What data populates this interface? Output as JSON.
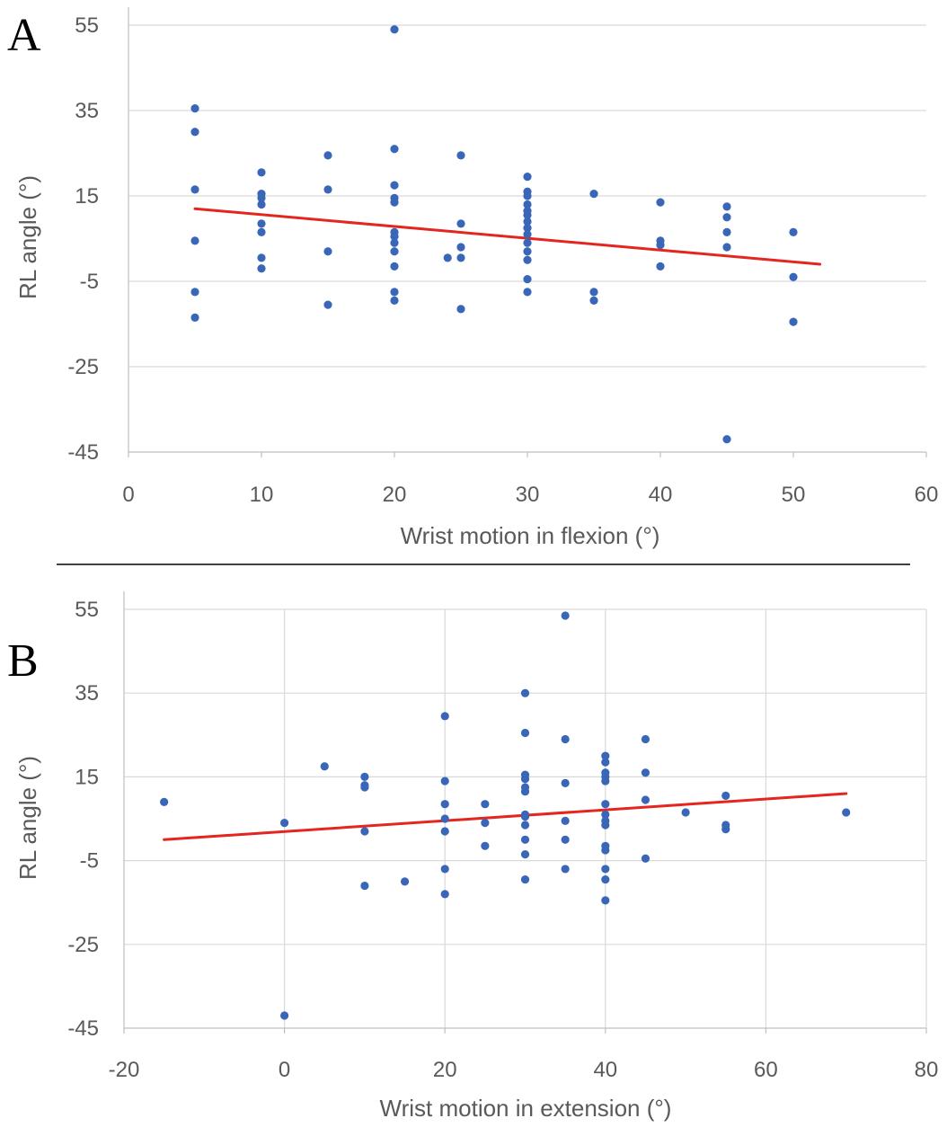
{
  "colors": {
    "points": "#3a66b8",
    "trendline": "#e3261f",
    "grid": "#d9d9d9",
    "text": "#595959",
    "divider": "#000000"
  },
  "chart_data": [
    {
      "type": "scatter",
      "panel_label": "A",
      "xlabel": "Wrist motion in flexion (°)",
      "ylabel": "RL angle (°)",
      "xlim": [
        0,
        60
      ],
      "ylim": [
        -45,
        55
      ],
      "xticks": [
        "0",
        "10",
        "20",
        "30",
        "40",
        "50",
        "60"
      ],
      "yticks": [
        "55",
        "35",
        "15",
        "-5",
        "-25",
        "-45"
      ],
      "x_ticks": [
        0,
        10,
        20,
        30,
        40,
        50,
        60
      ],
      "y_ticks": [
        55,
        35,
        15,
        -5,
        -25,
        -45
      ],
      "grid": "horizontal",
      "trendline": {
        "x": [
          5,
          52
        ],
        "y": [
          12,
          -1
        ]
      },
      "points": [
        [
          5,
          35.5
        ],
        [
          5,
          30
        ],
        [
          5,
          16.5
        ],
        [
          5,
          4.5
        ],
        [
          5,
          -7.5
        ],
        [
          5,
          -13.5
        ],
        [
          10,
          20.5
        ],
        [
          10,
          15.5
        ],
        [
          10,
          14.5
        ],
        [
          10,
          13
        ],
        [
          10,
          8.5
        ],
        [
          10,
          6.5
        ],
        [
          10,
          0.5
        ],
        [
          10,
          -2
        ],
        [
          15,
          24.5
        ],
        [
          15,
          16.5
        ],
        [
          15,
          2
        ],
        [
          15,
          -10.5
        ],
        [
          20,
          54
        ],
        [
          20,
          26
        ],
        [
          20,
          17.5
        ],
        [
          20,
          14.5
        ],
        [
          20,
          13.5
        ],
        [
          20,
          6.5
        ],
        [
          20,
          5.5
        ],
        [
          20,
          4
        ],
        [
          20,
          2
        ],
        [
          20,
          -1.5
        ],
        [
          20,
          -7.5
        ],
        [
          20,
          -9.5
        ],
        [
          24,
          0.5
        ],
        [
          25,
          24.5
        ],
        [
          25,
          8.5
        ],
        [
          25,
          3
        ],
        [
          25,
          0.5
        ],
        [
          25,
          -11.5
        ],
        [
          30,
          19.5
        ],
        [
          30,
          16
        ],
        [
          30,
          15
        ],
        [
          30,
          13
        ],
        [
          30,
          11.5
        ],
        [
          30,
          10.5
        ],
        [
          30,
          9
        ],
        [
          30,
          7.5
        ],
        [
          30,
          6
        ],
        [
          30,
          4
        ],
        [
          30,
          2
        ],
        [
          30,
          0
        ],
        [
          30,
          -4.5
        ],
        [
          30,
          -7.5
        ],
        [
          35,
          15.5
        ],
        [
          35,
          -7.5
        ],
        [
          35,
          -9.5
        ],
        [
          40,
          13.5
        ],
        [
          40,
          4.5
        ],
        [
          40,
          3.5
        ],
        [
          40,
          -1.5
        ],
        [
          45,
          12.5
        ],
        [
          45,
          10
        ],
        [
          45,
          6.5
        ],
        [
          45,
          3
        ],
        [
          50,
          6.5
        ],
        [
          50,
          -4
        ],
        [
          50,
          -14.5
        ],
        [
          45,
          -42
        ]
      ]
    },
    {
      "type": "scatter",
      "panel_label": "B",
      "xlabel": "Wrist motion in extension (°)",
      "ylabel": "RL angle (°)",
      "xlim": [
        -20,
        80
      ],
      "ylim": [
        -45,
        55
      ],
      "xticks": [
        "-20",
        "0",
        "20",
        "40",
        "60",
        "80"
      ],
      "yticks": [
        "55",
        "35",
        "15",
        "-5",
        "-25",
        "-45"
      ],
      "x_ticks": [
        -20,
        0,
        20,
        40,
        60,
        80
      ],
      "y_ticks": [
        55,
        35,
        15,
        -5,
        -25,
        -45
      ],
      "grid": "both",
      "trendline": {
        "x": [
          -15,
          70
        ],
        "y": [
          0,
          11
        ]
      },
      "points": [
        [
          -15,
          9
        ],
        [
          0,
          4
        ],
        [
          0,
          -42
        ],
        [
          5,
          17.5
        ],
        [
          10,
          15
        ],
        [
          10,
          13
        ],
        [
          10,
          12.5
        ],
        [
          10,
          2
        ],
        [
          10,
          -11
        ],
        [
          15,
          -10
        ],
        [
          20,
          29.5
        ],
        [
          20,
          14
        ],
        [
          20,
          8.5
        ],
        [
          20,
          5
        ],
        [
          20,
          2
        ],
        [
          20,
          -7
        ],
        [
          20,
          -13
        ],
        [
          25,
          8.5
        ],
        [
          25,
          4
        ],
        [
          25,
          -1.5
        ],
        [
          30,
          35
        ],
        [
          30,
          25.5
        ],
        [
          30,
          15.5
        ],
        [
          30,
          14.5
        ],
        [
          30,
          12.5
        ],
        [
          30,
          11.5
        ],
        [
          30,
          6
        ],
        [
          30,
          5.5
        ],
        [
          30,
          3.5
        ],
        [
          30,
          0
        ],
        [
          30,
          -3.5
        ],
        [
          30,
          -9.5
        ],
        [
          35,
          53.5
        ],
        [
          35,
          24
        ],
        [
          35,
          13.5
        ],
        [
          35,
          4.5
        ],
        [
          35,
          0
        ],
        [
          35,
          -7
        ],
        [
          40,
          20
        ],
        [
          40,
          18.5
        ],
        [
          40,
          16
        ],
        [
          40,
          15
        ],
        [
          40,
          14
        ],
        [
          40,
          8.5
        ],
        [
          40,
          6
        ],
        [
          40,
          4.5
        ],
        [
          40,
          3.5
        ],
        [
          40,
          -1.5
        ],
        [
          40,
          -2.5
        ],
        [
          40,
          -7
        ],
        [
          40,
          -9.5
        ],
        [
          40,
          -14.5
        ],
        [
          45,
          24
        ],
        [
          45,
          16
        ],
        [
          45,
          9.5
        ],
        [
          45,
          -4.5
        ],
        [
          50,
          6.5
        ],
        [
          55,
          10.5
        ],
        [
          55,
          3.5
        ],
        [
          55,
          2.5
        ],
        [
          70,
          6.5
        ]
      ]
    }
  ]
}
